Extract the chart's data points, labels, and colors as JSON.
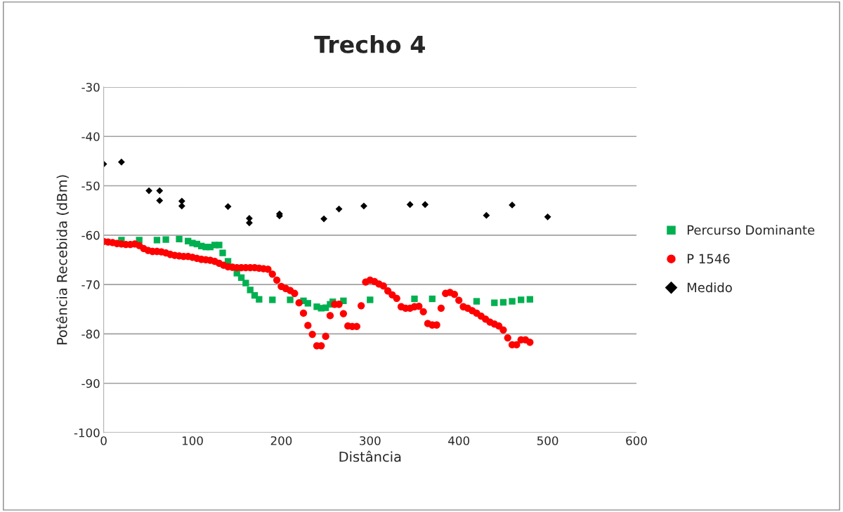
{
  "chart_data": {
    "type": "scatter",
    "title": "Trecho 4",
    "xlabel": "Distância",
    "ylabel": "Potência Recebida (dBm)",
    "xlim": [
      0,
      600
    ],
    "xticks": [
      0,
      100,
      200,
      300,
      400,
      500,
      600
    ],
    "ylim": [
      -100,
      -30
    ],
    "yticks": [
      -100,
      -90,
      -80,
      -70,
      -60,
      -50,
      -40,
      -30
    ],
    "grid": "y",
    "legend": "right",
    "series": [
      {
        "name": "Percurso Dominante",
        "color": "#00b050",
        "marker": "square",
        "x": [
          20,
          40,
          60,
          70,
          85,
          95,
          100,
          105,
          110,
          115,
          120,
          125,
          130,
          134,
          140,
          150,
          155,
          160,
          165,
          170,
          175,
          190,
          210,
          225,
          230,
          240,
          245,
          250,
          255,
          258,
          270,
          300,
          350,
          370,
          420,
          440,
          450,
          460,
          470,
          480
        ],
        "values": [
          -61,
          -61,
          -61,
          -60.9,
          -60.8,
          -61.2,
          -61.6,
          -61.8,
          -62.2,
          -62.4,
          -62.4,
          -62,
          -62,
          -63.6,
          -65.3,
          -67.7,
          -68.6,
          -69.7,
          -71.1,
          -72.2,
          -73,
          -73.1,
          -73.1,
          -73.3,
          -73.8,
          -74.5,
          -74.8,
          -74.7,
          -74,
          -73.5,
          -73.3,
          -73.1,
          -72.9,
          -72.9,
          -73.4,
          -73.7,
          -73.6,
          -73.4,
          -73.1,
          -73
        ]
      },
      {
        "name": "P 1546",
        "color": "#ff0000",
        "marker": "circle",
        "x": [
          0,
          5,
          10,
          15,
          20,
          25,
          30,
          35,
          40,
          45,
          50,
          55,
          60,
          65,
          70,
          75,
          80,
          85,
          90,
          95,
          100,
          105,
          110,
          115,
          120,
          125,
          130,
          135,
          140,
          145,
          150,
          155,
          160,
          165,
          170,
          175,
          180,
          185,
          190,
          195,
          200,
          205,
          210,
          215,
          220,
          225,
          230,
          235,
          240,
          245,
          250,
          255,
          260,
          265,
          270,
          275,
          280,
          285,
          290,
          295,
          300,
          305,
          310,
          315,
          320,
          325,
          330,
          335,
          340,
          345,
          350,
          355,
          360,
          365,
          370,
          375,
          380,
          385,
          390,
          395,
          400,
          405,
          410,
          415,
          420,
          425,
          430,
          435,
          440,
          445,
          450,
          455,
          460,
          465,
          470,
          475,
          480
        ],
        "values": [
          -61.3,
          -61.4,
          -61.5,
          -61.7,
          -61.8,
          -61.9,
          -61.9,
          -61.8,
          -62.1,
          -62.7,
          -63.1,
          -63.3,
          -63.3,
          -63.4,
          -63.6,
          -63.9,
          -64.1,
          -64.2,
          -64.3,
          -64.3,
          -64.5,
          -64.7,
          -64.9,
          -65,
          -65.1,
          -65.3,
          -65.7,
          -66.1,
          -66.4,
          -66.5,
          -66.6,
          -66.6,
          -66.6,
          -66.6,
          -66.6,
          -66.7,
          -66.8,
          -66.9,
          -67.9,
          -69.1,
          -70.4,
          -70.8,
          -71.2,
          -71.8,
          -73.7,
          -75.8,
          -78.3,
          -80.1,
          -82.4,
          -82.4,
          -80.5,
          -76.3,
          -74,
          -74,
          -75.9,
          -78.4,
          -78.5,
          -78.5,
          -74.3,
          -69.5,
          -69.1,
          -69.4,
          -69.9,
          -70.3,
          -71.3,
          -72.1,
          -72.8,
          -74.5,
          -74.8,
          -74.8,
          -74.5,
          -74.4,
          -75.5,
          -77.9,
          -78.2,
          -78.2,
          -74.8,
          -71.8,
          -71.6,
          -72,
          -73.2,
          -74.5,
          -74.8,
          -75.3,
          -75.8,
          -76.4,
          -77,
          -77.6,
          -78,
          -78.4,
          -79.2,
          -80.8,
          -82.2,
          -82.2,
          -81.2,
          -81.2,
          -81.7
        ]
      },
      {
        "name": "Medido",
        "color": "#000000",
        "marker": "diamond",
        "x": [
          0,
          20,
          51,
          63,
          63,
          88,
          88,
          140,
          164,
          164,
          198,
          198,
          248,
          265,
          293,
          345,
          362,
          431,
          460,
          500
        ],
        "values": [
          -45.6,
          -45.2,
          -51,
          -51,
          -53,
          -53.1,
          -54.1,
          -54.2,
          -56.6,
          -57.5,
          -55.7,
          -56.1,
          -56.7,
          -54.7,
          -54.1,
          -53.8,
          -53.8,
          -56,
          -53.9,
          -56.3
        ]
      }
    ]
  }
}
